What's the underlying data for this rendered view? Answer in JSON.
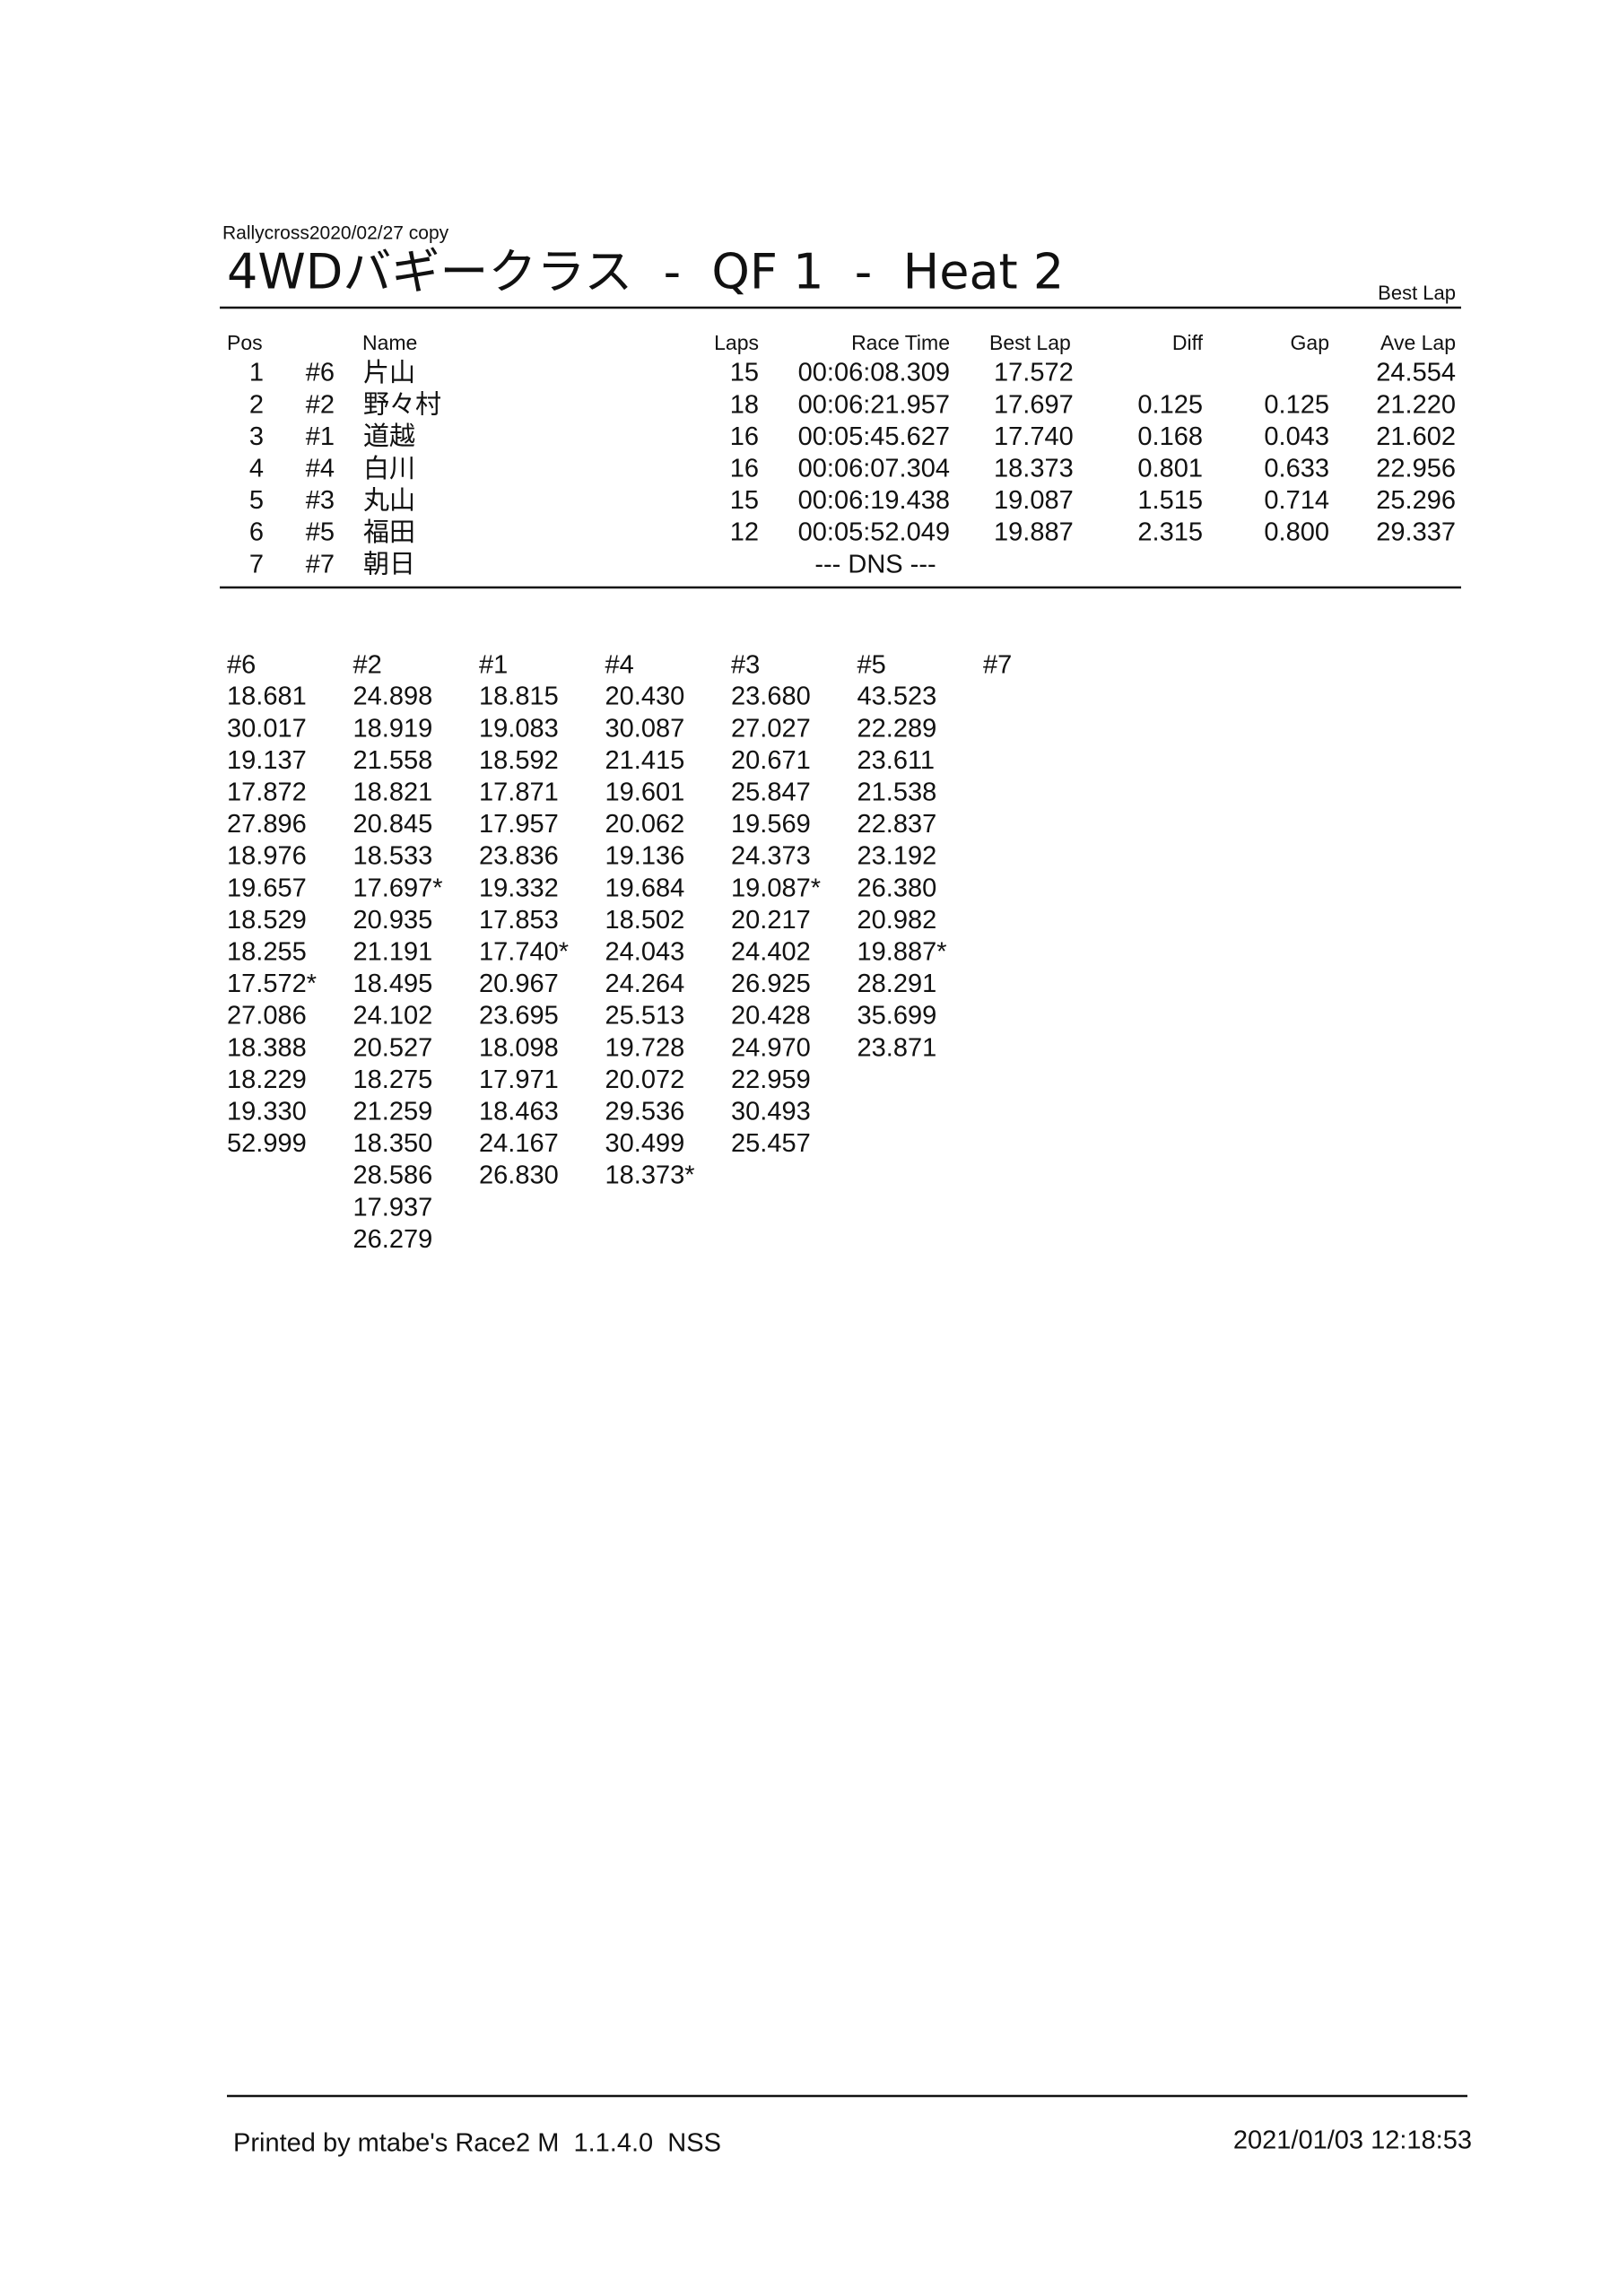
{
  "header": {
    "event": "Rallycross2020/02/27 copy",
    "title": "4WDバギークラス  -  QF 1  -  Heat 2",
    "sort_label": "Best Lap"
  },
  "results": {
    "columns": {
      "pos": "Pos",
      "name": "Name",
      "laps": "Laps",
      "race_time": "Race Time",
      "best_lap": "Best Lap",
      "diff": "Diff",
      "gap": "Gap",
      "ave_lap": "Ave Lap"
    },
    "rows": [
      {
        "pos": "1",
        "number": "#6",
        "name": "片山",
        "laps": "15",
        "race_time": "00:06:08.309",
        "best_lap": "17.572",
        "ave_lap": "24.554"
      },
      {
        "pos": "2",
        "number": "#2",
        "name": "野々村",
        "laps": "18",
        "race_time": "00:06:21.957",
        "best_lap": "17.697",
        "diff": "0.125",
        "gap": "0.125",
        "ave_lap": "21.220"
      },
      {
        "pos": "3",
        "number": "#1",
        "name": "道越",
        "laps": "16",
        "race_time": "00:05:45.627",
        "best_lap": "17.740",
        "diff": "0.168",
        "gap": "0.043",
        "ave_lap": "21.602"
      },
      {
        "pos": "4",
        "number": "#4",
        "name": "白川",
        "laps": "16",
        "race_time": "00:06:07.304",
        "best_lap": "18.373",
        "diff": "0.801",
        "gap": "0.633",
        "ave_lap": "22.956"
      },
      {
        "pos": "5",
        "number": "#3",
        "name": "丸山",
        "laps": "15",
        "race_time": "00:06:19.438",
        "best_lap": "19.087",
        "diff": "1.515",
        "gap": "0.714",
        "ave_lap": "25.296"
      },
      {
        "pos": "6",
        "number": "#5",
        "name": "福田",
        "laps": "12",
        "race_time": "00:05:52.049",
        "best_lap": "19.887",
        "diff": "2.315",
        "gap": "0.800",
        "ave_lap": "29.337"
      },
      {
        "pos": "7",
        "number": "#7",
        "name": "朝日",
        "status": "--- DNS ---"
      }
    ]
  },
  "lap_times": [
    {
      "header": "#6",
      "times": [
        "18.681",
        "30.017",
        "19.137",
        "17.872",
        "27.896",
        "18.976",
        "19.657",
        "18.529",
        "18.255",
        "17.572*",
        "27.086",
        "18.388",
        "18.229",
        "19.330",
        "52.999"
      ]
    },
    {
      "header": "#2",
      "times": [
        "24.898",
        "18.919",
        "21.558",
        "18.821",
        "20.845",
        "18.533",
        "17.697*",
        "20.935",
        "21.191",
        "18.495",
        "24.102",
        "20.527",
        "18.275",
        "21.259",
        "18.350",
        "28.586",
        "17.937",
        "26.279"
      ]
    },
    {
      "header": "#1",
      "times": [
        "18.815",
        "19.083",
        "18.592",
        "17.871",
        "17.957",
        "23.836",
        "19.332",
        "17.853",
        "17.740*",
        "20.967",
        "23.695",
        "18.098",
        "17.971",
        "18.463",
        "24.167",
        "26.830"
      ]
    },
    {
      "header": "#4",
      "times": [
        "20.430",
        "30.087",
        "21.415",
        "19.601",
        "20.062",
        "19.136",
        "19.684",
        "18.502",
        "24.043",
        "24.264",
        "25.513",
        "19.728",
        "20.072",
        "29.536",
        "30.499",
        "18.373*"
      ]
    },
    {
      "header": "#3",
      "times": [
        "23.680",
        "27.027",
        "20.671",
        "25.847",
        "19.569",
        "24.373",
        "19.087*",
        "20.217",
        "24.402",
        "26.925",
        "20.428",
        "24.970",
        "22.959",
        "30.493",
        "25.457"
      ]
    },
    {
      "header": "#5",
      "times": [
        "43.523",
        "22.289",
        "23.611",
        "21.538",
        "22.837",
        "23.192",
        "26.380",
        "20.982",
        "19.887*",
        "28.291",
        "35.699",
        "23.871"
      ]
    },
    {
      "header": "#7",
      "times": []
    }
  ],
  "footer": {
    "printed_by": "Printed by mtabe's Race2 M  1.1.4.0  NSS",
    "timestamp": "2021/01/03 12:18:53"
  }
}
